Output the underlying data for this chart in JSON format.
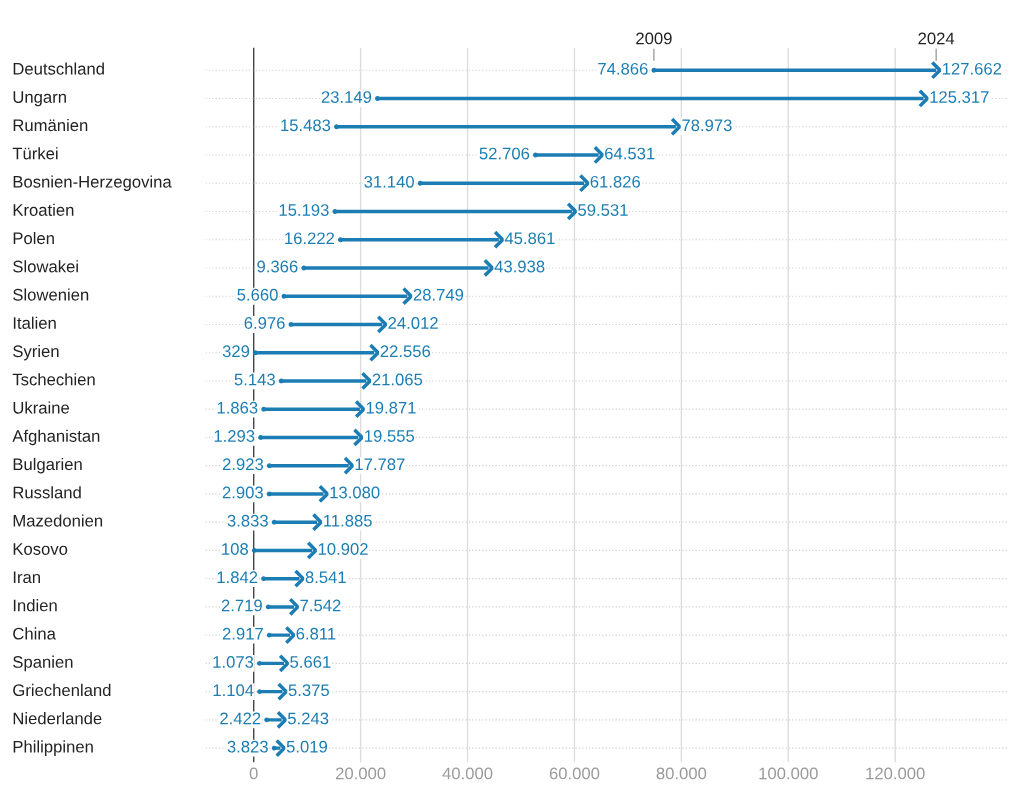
{
  "chart_data": {
    "type": "scatter",
    "orientation": "horizontal",
    "grid": true,
    "legend": false,
    "categories": [
      "Deutschland",
      "Ungarn",
      "Rumänien",
      "Türkei",
      "Bosnien-Herzegovina",
      "Kroatien",
      "Polen",
      "Slowakei",
      "Slowenien",
      "Italien",
      "Syrien",
      "Tschechien",
      "Ukraine",
      "Afghanistan",
      "Bulgarien",
      "Russland",
      "Mazedonien",
      "Kosovo",
      "Iran",
      "Indien",
      "China",
      "Spanien",
      "Griechenland",
      "Niederlande",
      "Philippinen"
    ],
    "xlim": [
      -9000,
      141000
    ],
    "xticks": [
      {
        "value": 0,
        "label": "0"
      },
      {
        "value": 20000,
        "label": "20.000"
      },
      {
        "value": 40000,
        "label": "40.000"
      },
      {
        "value": 60000,
        "label": "60.000"
      },
      {
        "value": 80000,
        "label": "80.000"
      },
      {
        "value": 100000,
        "label": "100.000"
      },
      {
        "value": 120000,
        "label": "120.000"
      }
    ],
    "series": [
      {
        "name": "2009",
        "color": "#1b7db3",
        "values": [
          74866,
          23149,
          15483,
          52706,
          31140,
          15193,
          16222,
          9366,
          5660,
          6976,
          329,
          5143,
          1863,
          1293,
          2923,
          2903,
          3833,
          108,
          1842,
          2719,
          2917,
          1073,
          1104,
          2422,
          3823
        ],
        "value_labels": [
          "74.866",
          "23.149",
          "15.483",
          "52.706",
          "31.140",
          "15.193",
          "16.222",
          "9.366",
          "5.660",
          "6.976",
          "329",
          "5.143",
          "1.863",
          "1.293",
          "2.923",
          "2.903",
          "3.833",
          "108",
          "1.842",
          "2.719",
          "2.917",
          "1.073",
          "1.104",
          "2.422",
          "3.823"
        ]
      },
      {
        "name": "2024",
        "color": "#1b7db3",
        "values": [
          127662,
          125317,
          78973,
          64531,
          61826,
          59531,
          45861,
          43938,
          28749,
          24012,
          22556,
          21065,
          19871,
          19555,
          17787,
          13080,
          11885,
          10902,
          8541,
          7542,
          6811,
          5661,
          5375,
          5243,
          5019
        ],
        "value_labels": [
          "127.662",
          "125.317",
          "78.973",
          "64.531",
          "61.826",
          "59.531",
          "45.861",
          "43.938",
          "28.749",
          "24.012",
          "22.556",
          "21.065",
          "19.871",
          "19.555",
          "17.787",
          "13.080",
          "11.885",
          "10.902",
          "8.541",
          "7.542",
          "6.811",
          "5.661",
          "5.375",
          "5.243",
          "5.019"
        ]
      }
    ]
  }
}
